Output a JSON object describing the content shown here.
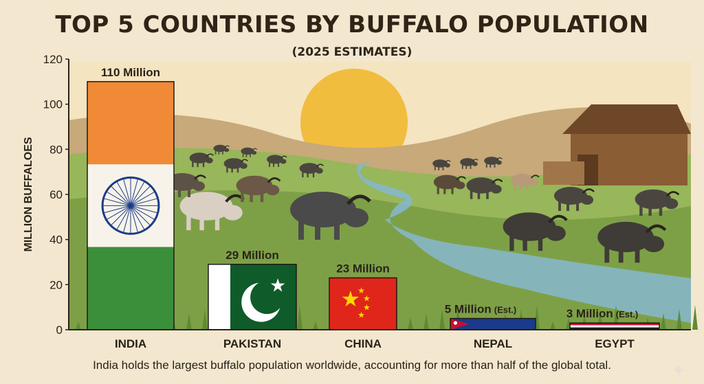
{
  "chart_data": {
    "type": "bar",
    "title": "TOP 5 COUNTRIES BY BUFFALO POPULATION",
    "subtitle": "(2025 ESTIMATES)",
    "ylabel": "MILLION BUFFALOES",
    "xlabel": "",
    "ylim": [
      0,
      120
    ],
    "yticks": [
      0,
      20,
      40,
      60,
      80,
      100,
      120
    ],
    "categories": [
      "INDIA",
      "PAKISTAN",
      "CHINA",
      "NEPAL",
      "EGYPT"
    ],
    "values": [
      110,
      29,
      23,
      5,
      3
    ],
    "value_labels": [
      {
        "main": "110 Million",
        "note": ""
      },
      {
        "main": "29 Million",
        "note": ""
      },
      {
        "main": "23 Million",
        "note": ""
      },
      {
        "main": "5 Million",
        "note": "(Est.)"
      },
      {
        "main": "3 Million",
        "note": "(Est.)"
      }
    ],
    "bar_styles": [
      "flag-india",
      "flag-pakistan",
      "flag-china",
      "flag-nepal",
      "flag-egypt"
    ],
    "grid": false,
    "caption": "India holds the largest buffalo population worldwide, accounting for more than half of the global total."
  },
  "colors": {
    "background": "#f3e7cf",
    "text": "#2f2416",
    "axis": "#2a2218",
    "india_saffron": "#f08a36",
    "india_white": "#f7f3ea",
    "india_green": "#3c8f3a",
    "chakra": "#1d3b87",
    "pakistan_green": "#0f5b2a",
    "china_red": "#e0251b",
    "china_yellow": "#ffd700",
    "nepal_crimson": "#c8102e",
    "nepal_blue": "#1b3a8c",
    "egypt_red": "#c8102e",
    "egypt_black": "#1a1a1a",
    "grass": "#7da047",
    "sky": "#f4e4c0",
    "sun": "#f1bd3f",
    "river": "#86b7c6"
  }
}
